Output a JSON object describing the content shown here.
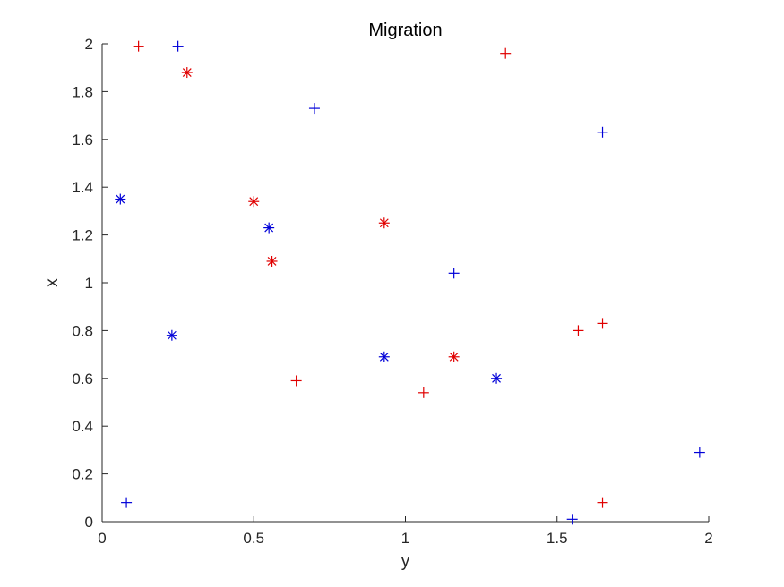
{
  "chart_data": {
    "type": "scatter",
    "title": "Migration",
    "xlabel": "y",
    "ylabel": "x",
    "xlim": [
      0,
      2
    ],
    "ylim": [
      0,
      2
    ],
    "xticks": [
      0,
      0.5,
      1,
      1.5,
      2
    ],
    "xtick_labels": [
      "0",
      "0.5",
      "1",
      "1.5",
      "2"
    ],
    "yticks": [
      0,
      0.2,
      0.4,
      0.6,
      0.8,
      1,
      1.2,
      1.4,
      1.6,
      1.8,
      2
    ],
    "ytick_labels": [
      "0",
      "0.2",
      "0.4",
      "0.6",
      "0.8",
      "1",
      "1.2",
      "1.4",
      "1.6",
      "1.8",
      "2"
    ],
    "grid": false,
    "series": [
      {
        "color": "#e00000",
        "marker": "plus",
        "points": [
          {
            "x": 0.12,
            "y": 1.99
          },
          {
            "x": 1.33,
            "y": 1.96
          },
          {
            "x": 0.64,
            "y": 0.59
          },
          {
            "x": 1.06,
            "y": 0.54
          },
          {
            "x": 1.57,
            "y": 0.8
          },
          {
            "x": 1.65,
            "y": 0.83
          },
          {
            "x": 1.65,
            "y": 0.08
          }
        ]
      },
      {
        "color": "#e00000",
        "marker": "asterisk",
        "points": [
          {
            "x": 0.28,
            "y": 1.88
          },
          {
            "x": 0.5,
            "y": 1.34
          },
          {
            "x": 0.56,
            "y": 1.09
          },
          {
            "x": 0.93,
            "y": 1.25
          },
          {
            "x": 1.16,
            "y": 0.69
          }
        ]
      },
      {
        "color": "#0000d8",
        "marker": "plus",
        "points": [
          {
            "x": 0.25,
            "y": 1.99
          },
          {
            "x": 0.7,
            "y": 1.73
          },
          {
            "x": 1.65,
            "y": 1.63
          },
          {
            "x": 1.16,
            "y": 1.04
          },
          {
            "x": 0.08,
            "y": 0.08
          },
          {
            "x": 1.55,
            "y": 0.01
          },
          {
            "x": 1.97,
            "y": 0.29
          }
        ]
      },
      {
        "color": "#0000d8",
        "marker": "asterisk",
        "points": [
          {
            "x": 0.06,
            "y": 1.35
          },
          {
            "x": 0.55,
            "y": 1.23
          },
          {
            "x": 0.23,
            "y": 0.78
          },
          {
            "x": 0.93,
            "y": 0.69
          },
          {
            "x": 1.3,
            "y": 0.6
          }
        ]
      }
    ]
  }
}
